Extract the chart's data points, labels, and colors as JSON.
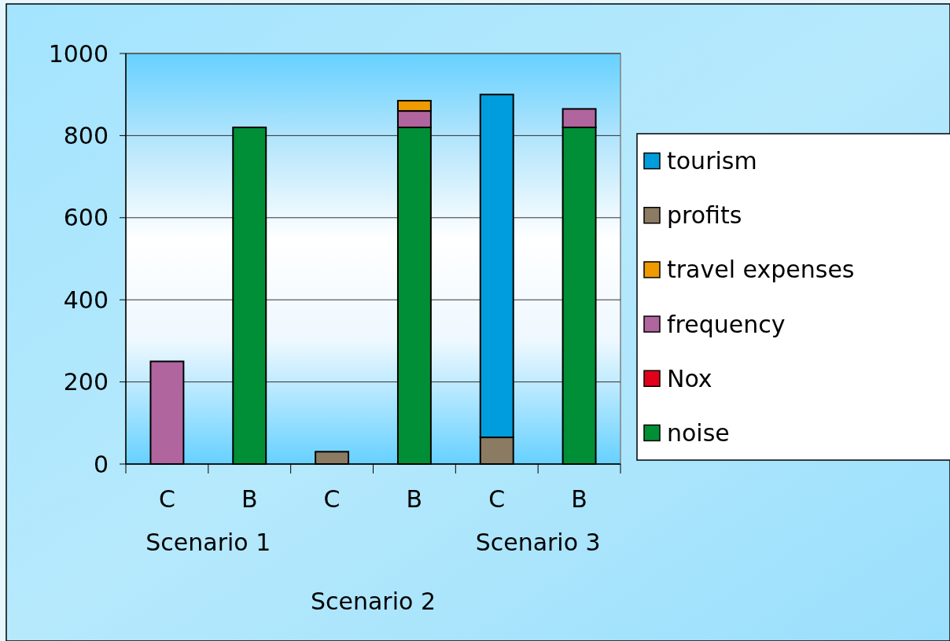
{
  "chart_data": {
    "type": "bar",
    "stacked": true,
    "categories": [
      "C",
      "B",
      "C",
      "B",
      "C",
      "B"
    ],
    "series": [
      {
        "name": "noise",
        "color": "#008f36",
        "values": [
          0,
          820,
          0,
          820,
          0,
          820
        ]
      },
      {
        "name": "Nox",
        "color": "#e2001a",
        "values": [
          0,
          0,
          0,
          0,
          0,
          0
        ]
      },
      {
        "name": "frequency",
        "color": "#b0659e",
        "values": [
          250,
          0,
          0,
          40,
          0,
          45
        ]
      },
      {
        "name": "travel expenses",
        "color": "#ee9a00",
        "values": [
          0,
          0,
          0,
          25,
          0,
          0
        ]
      },
      {
        "name": "profits",
        "color": "#8b7b62",
        "values": [
          0,
          0,
          30,
          0,
          65,
          0
        ]
      },
      {
        "name": "tourism",
        "color": "#009ddc",
        "values": [
          0,
          0,
          0,
          0,
          835,
          0
        ]
      }
    ],
    "ylim": [
      0,
      1000
    ],
    "yticks": [
      0,
      200,
      400,
      600,
      800,
      1000
    ],
    "grid": "y",
    "legend": "right",
    "annotations": [
      "Scenario 1",
      "Scenario 2",
      "Scenario 3"
    ]
  }
}
